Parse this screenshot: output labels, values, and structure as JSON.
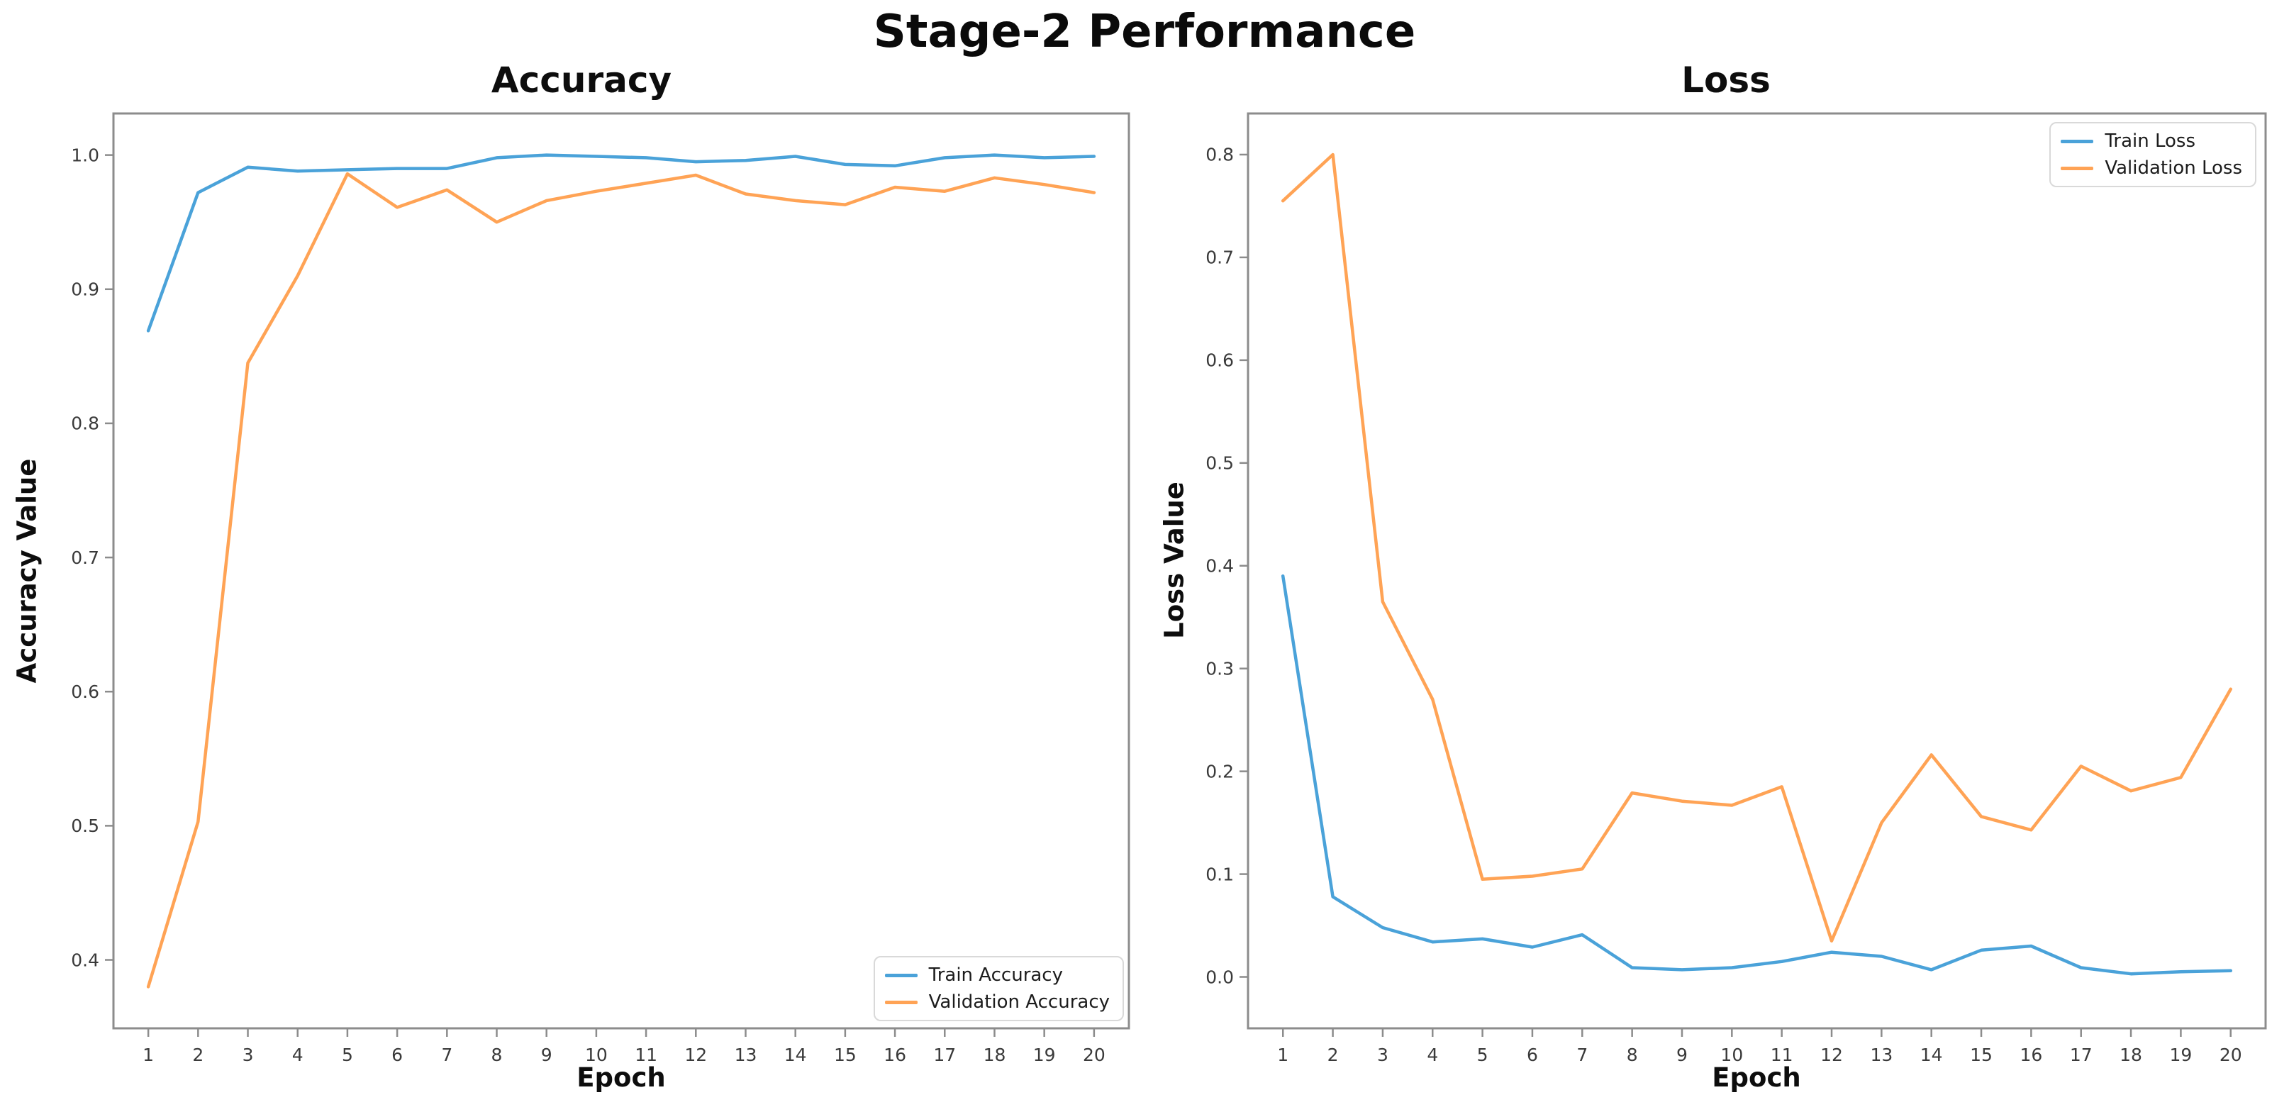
{
  "suptitle": "Stage-2 Performance",
  "colors": {
    "train_line": "#4aa2d9",
    "validation_line": "#ffa355",
    "spine": "#8c8c8c",
    "tick_label": "#3a3a3a"
  },
  "chart_data": [
    {
      "type": "line",
      "title": "Accuracy",
      "xlabel": "Epoch",
      "ylabel": "Accuracy Value",
      "legend_location": "lower-right",
      "grid": false,
      "x": [
        1,
        2,
        3,
        4,
        5,
        6,
        7,
        8,
        9,
        10,
        11,
        12,
        13,
        14,
        15,
        16,
        17,
        18,
        19,
        20
      ],
      "xtick_labels": [
        "1",
        "2",
        "3",
        "4",
        "5",
        "6",
        "7",
        "8",
        "9",
        "10",
        "11",
        "12",
        "13",
        "14",
        "15",
        "16",
        "17",
        "18",
        "19",
        "20"
      ],
      "yticks": [
        0.4,
        0.5,
        0.6,
        0.7,
        0.8,
        0.9,
        1.0
      ],
      "ytick_labels": [
        "0.4",
        "0.5",
        "0.6",
        "0.7",
        "0.8",
        "0.9",
        "1.0"
      ],
      "xlim": [
        0.3,
        20.7
      ],
      "ylim": [
        0.349,
        1.031
      ],
      "series": [
        {
          "name": "Train Accuracy",
          "color": "#4aa2d9",
          "values": [
            0.869,
            0.972,
            0.991,
            0.988,
            0.989,
            0.99,
            0.99,
            0.998,
            1.0,
            0.999,
            0.998,
            0.995,
            0.996,
            0.999,
            0.993,
            0.992,
            0.998,
            1.0,
            0.998,
            0.999
          ]
        },
        {
          "name": "Validation Accuracy",
          "color": "#ffa355",
          "values": [
            0.38,
            0.503,
            0.845,
            0.91,
            0.986,
            0.961,
            0.974,
            0.95,
            0.966,
            0.973,
            0.979,
            0.985,
            0.971,
            0.966,
            0.963,
            0.976,
            0.973,
            0.983,
            0.978,
            0.972
          ]
        }
      ]
    },
    {
      "type": "line",
      "title": "Loss",
      "xlabel": "Epoch",
      "ylabel": "Loss Value",
      "legend_location": "upper-right",
      "grid": false,
      "x": [
        1,
        2,
        3,
        4,
        5,
        6,
        7,
        8,
        9,
        10,
        11,
        12,
        13,
        14,
        15,
        16,
        17,
        18,
        19,
        20
      ],
      "xtick_labels": [
        "1",
        "2",
        "3",
        "4",
        "5",
        "6",
        "7",
        "8",
        "9",
        "10",
        "11",
        "12",
        "13",
        "14",
        "15",
        "16",
        "17",
        "18",
        "19",
        "20"
      ],
      "yticks": [
        0.0,
        0.1,
        0.2,
        0.3,
        0.4,
        0.5,
        0.6,
        0.7,
        0.8
      ],
      "ytick_labels": [
        "0.0",
        "0.1",
        "0.2",
        "0.3",
        "0.4",
        "0.5",
        "0.6",
        "0.7",
        "0.8"
      ],
      "xlim": [
        0.3,
        20.7
      ],
      "ylim": [
        -0.05,
        0.84
      ],
      "series": [
        {
          "name": "Train Loss",
          "color": "#4aa2d9",
          "values": [
            0.39,
            0.078,
            0.048,
            0.034,
            0.037,
            0.029,
            0.041,
            0.009,
            0.007,
            0.009,
            0.015,
            0.024,
            0.02,
            0.007,
            0.026,
            0.03,
            0.009,
            0.003,
            0.005,
            0.006
          ]
        },
        {
          "name": "Validation Loss",
          "color": "#ffa355",
          "values": [
            0.755,
            0.8,
            0.365,
            0.27,
            0.095,
            0.098,
            0.105,
            0.179,
            0.171,
            0.167,
            0.185,
            0.035,
            0.15,
            0.216,
            0.156,
            0.143,
            0.205,
            0.181,
            0.194,
            0.28
          ]
        }
      ]
    }
  ]
}
